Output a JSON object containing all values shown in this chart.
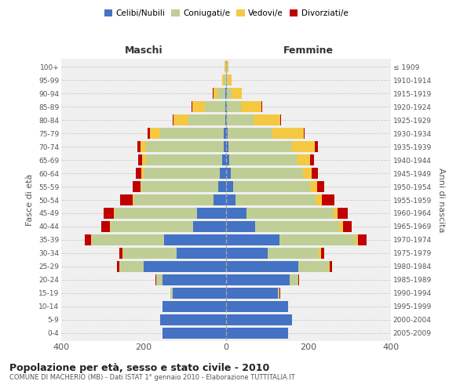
{
  "age_groups": [
    "0-4",
    "5-9",
    "10-14",
    "15-19",
    "20-24",
    "25-29",
    "30-34",
    "35-39",
    "40-44",
    "45-49",
    "50-54",
    "55-59",
    "60-64",
    "65-69",
    "70-74",
    "75-79",
    "80-84",
    "85-89",
    "90-94",
    "95-99",
    "100+"
  ],
  "birth_years": [
    "2005-2009",
    "2000-2004",
    "1995-1999",
    "1990-1994",
    "1985-1989",
    "1980-1984",
    "1975-1979",
    "1970-1974",
    "1965-1969",
    "1960-1964",
    "1955-1959",
    "1950-1954",
    "1945-1949",
    "1940-1944",
    "1935-1939",
    "1930-1934",
    "1925-1929",
    "1920-1924",
    "1915-1919",
    "1910-1914",
    "≤ 1909"
  ],
  "maschi": {
    "celibi": [
      155,
      160,
      155,
      130,
      155,
      200,
      120,
      150,
      80,
      70,
      30,
      20,
      15,
      10,
      5,
      5,
      2,
      2,
      1,
      0,
      0
    ],
    "coniugati": [
      0,
      0,
      0,
      5,
      15,
      60,
      130,
      175,
      200,
      200,
      195,
      185,
      185,
      185,
      190,
      155,
      90,
      50,
      20,
      5,
      2
    ],
    "vedovi": [
      0,
      0,
      0,
      0,
      0,
      0,
      2,
      2,
      2,
      2,
      2,
      3,
      5,
      8,
      12,
      25,
      35,
      30,
      10,
      5,
      2
    ],
    "divorziati": [
      0,
      0,
      0,
      0,
      2,
      5,
      8,
      15,
      20,
      25,
      30,
      18,
      15,
      10,
      8,
      5,
      2,
      2,
      1,
      0,
      0
    ]
  },
  "femmine": {
    "nubili": [
      150,
      160,
      150,
      125,
      155,
      175,
      100,
      130,
      70,
      50,
      22,
      18,
      12,
      8,
      5,
      3,
      2,
      1,
      1,
      0,
      0
    ],
    "coniugate": [
      0,
      0,
      0,
      5,
      20,
      75,
      125,
      185,
      205,
      210,
      195,
      185,
      175,
      165,
      155,
      110,
      65,
      35,
      12,
      3,
      1
    ],
    "vedove": [
      0,
      0,
      0,
      0,
      0,
      2,
      5,
      5,
      8,
      10,
      15,
      18,
      20,
      30,
      55,
      75,
      65,
      50,
      25,
      10,
      5
    ],
    "divorziate": [
      0,
      0,
      0,
      2,
      2,
      5,
      8,
      20,
      22,
      25,
      30,
      18,
      15,
      10,
      8,
      3,
      2,
      2,
      1,
      0,
      0
    ]
  },
  "colors": {
    "celibi": "#4472C4",
    "coniugati": "#BFCE95",
    "vedovi": "#F5C842",
    "divorziati": "#C00000"
  },
  "legend_labels": [
    "Celibi/Nubili",
    "Coniugati/e",
    "Vedovi/e",
    "Divorziati/e"
  ],
  "title": "Popolazione per età, sesso e stato civile - 2010",
  "subtitle": "COMUNE DI MACHERIO (MB) - Dati ISTAT 1° gennaio 2010 - Elaborazione TUTTITALIA.IT",
  "xlabel_left": "Maschi",
  "xlabel_right": "Femmine",
  "ylabel_left": "Fasce di età",
  "ylabel_right": "Anni di nascita",
  "xlim": 400,
  "background_color": "#ffffff",
  "plot_bg": "#f0f0f0"
}
